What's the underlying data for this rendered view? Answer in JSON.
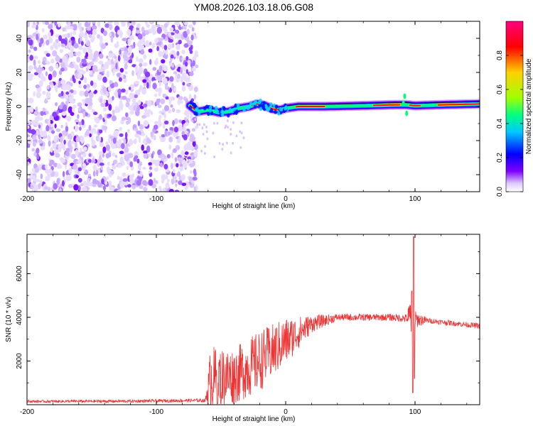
{
  "figure_title": "YM08.2026.103.18.06.G08",
  "chart_data": [
    {
      "type": "heatmap",
      "title": "YM08.2026.103.18.06.G08",
      "xlabel": "Height of straight line (km)",
      "ylabel": "Frequency (Hz)",
      "xlim": [
        -200,
        150
      ],
      "ylim": [
        -50,
        50
      ],
      "x_ticks": [
        -200,
        -100,
        0,
        100
      ],
      "y_ticks": [
        -40,
        -20,
        0,
        20,
        40
      ],
      "colorbar": {
        "label": "Normalized spectral amplitude",
        "range": [
          0,
          1
        ],
        "ticks": [
          0.0,
          0.2,
          0.4,
          0.6,
          0.8
        ],
        "tick_labels": [
          "0.0",
          "0.2",
          "0.4",
          "0.6",
          "0.8"
        ],
        "colors": [
          "#ffffff",
          "#dcc8ff",
          "#8000ff",
          "#0000ff",
          "#00c8ff",
          "#00ff80",
          "#a0ff00",
          "#ffd000",
          "#ff0000",
          "#ff0080"
        ]
      },
      "noise_region_x": [
        -200,
        -72
      ],
      "signal_ridge": [
        {
          "x": -74,
          "y": 0.5
        },
        {
          "x": -68,
          "y": -3
        },
        {
          "x": -60,
          "y": -2
        },
        {
          "x": -52,
          "y": -3.5
        },
        {
          "x": -44,
          "y": -3
        },
        {
          "x": -36,
          "y": -1
        },
        {
          "x": -28,
          "y": 0
        },
        {
          "x": -22,
          "y": 1.5
        },
        {
          "x": -16,
          "y": 0.5
        },
        {
          "x": -10,
          "y": -1.5
        },
        {
          "x": -4,
          "y": -2
        },
        {
          "x": 0,
          "y": -1
        },
        {
          "x": 10,
          "y": 0
        },
        {
          "x": 30,
          "y": 0
        },
        {
          "x": 60,
          "y": 0.5
        },
        {
          "x": 85,
          "y": 1
        },
        {
          "x": 93,
          "y": 1
        },
        {
          "x": 100,
          "y": 0.5
        },
        {
          "x": 120,
          "y": 1
        },
        {
          "x": 150,
          "y": 1.5
        }
      ]
    },
    {
      "type": "line",
      "xlabel": "Height of straight line (km)",
      "ylabel": "SNR (10 * v/v)",
      "xlim": [
        -200,
        150
      ],
      "ylim": [
        0,
        7800
      ],
      "x_ticks": [
        -200,
        -100,
        0,
        100
      ],
      "y_ticks": [
        2000,
        4000,
        6000
      ],
      "series": [
        {
          "name": "SNR",
          "color": "#ee3333",
          "envelope": [
            {
              "x": -200,
              "mean": 150,
              "amp": 60
            },
            {
              "x": -120,
              "mean": 160,
              "amp": 70
            },
            {
              "x": -62,
              "mean": 200,
              "amp": 80
            },
            {
              "x": -58,
              "mean": 1200,
              "amp": 1500
            },
            {
              "x": -40,
              "mean": 1300,
              "amp": 1300
            },
            {
              "x": -20,
              "mean": 2000,
              "amp": 1400
            },
            {
              "x": 0,
              "mean": 2900,
              "amp": 1100
            },
            {
              "x": 20,
              "mean": 3700,
              "amp": 400
            },
            {
              "x": 40,
              "mean": 4000,
              "amp": 160
            },
            {
              "x": 80,
              "mean": 4000,
              "amp": 160
            },
            {
              "x": 94,
              "mean": 3950,
              "amp": 200
            },
            {
              "x": 97,
              "mean": 3800,
              "amp": 1800
            },
            {
              "x": 100,
              "mean": 3900,
              "amp": 400
            },
            {
              "x": 110,
              "mean": 3850,
              "amp": 120
            },
            {
              "x": 150,
              "mean": 3600,
              "amp": 130
            }
          ],
          "spikes": [
            {
              "x": 97.5,
              "y": 5200
            },
            {
              "x": 98.3,
              "y": 550
            },
            {
              "x": 99.0,
              "y": 7700
            },
            {
              "x": 99.6,
              "y": 1200
            }
          ]
        }
      ]
    }
  ]
}
